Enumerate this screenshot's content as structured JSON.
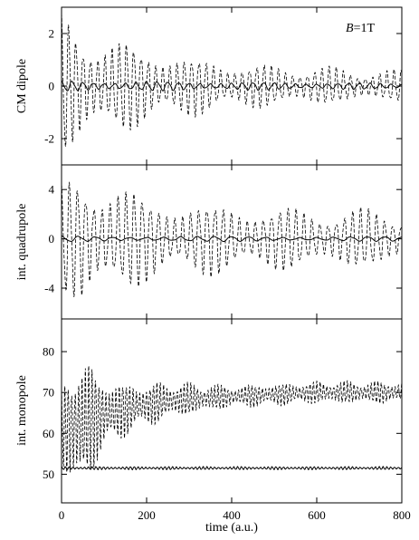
{
  "chart_data": [
    {
      "type": "line",
      "panel": "top",
      "ylabel": "CM dipole",
      "annotation": {
        "italic": "B",
        "rest": "=1T",
        "position": "top-right"
      },
      "xlim": [
        0,
        800
      ],
      "ylim": [
        -3,
        3
      ],
      "yticks": [
        -2,
        0,
        2
      ],
      "ytick_labels": [
        "-2",
        "0",
        "2"
      ],
      "grid": false,
      "series": [
        {
          "style": "dashed",
          "envelope": {
            "t": [
              0,
              50,
              100,
              200,
              300,
              400,
              500,
              600,
              700,
              800
            ],
            "amp": [
              2.9,
              2.3,
              2.0,
              1.6,
              1.2,
              1.0,
              0.85,
              0.8,
              0.7,
              0.65
            ]
          },
          "period": 17,
          "mean": 0
        },
        {
          "style": "solid",
          "envelope": {
            "t": [
              0,
              800
            ],
            "amp": [
              0.22,
              0.12
            ]
          },
          "period": 25,
          "mean": 0
        }
      ]
    },
    {
      "type": "line",
      "panel": "middle",
      "ylabel": "int. quadrupole",
      "xlim": [
        0,
        800
      ],
      "ylim": [
        -6.5,
        6
      ],
      "yticks": [
        -4,
        0,
        4
      ],
      "ytick_labels": [
        "-4",
        "0",
        "4"
      ],
      "grid": false,
      "series": [
        {
          "style": "dashed",
          "envelope": {
            "t": [
              0,
              50,
              100,
              200,
              300,
              400,
              500,
              600,
              700,
              800
            ],
            "amp": [
              4.6,
              6.5,
              5.0,
              3.8,
              3.2,
              3.0,
              2.8,
              2.6,
              2.6,
              2.4
            ]
          },
          "period": 19,
          "mean": 0
        },
        {
          "style": "solid",
          "envelope": {
            "t": [
              0,
              800
            ],
            "amp": [
              0.25,
              0.2
            ]
          },
          "period": 40,
          "mean": 0
        }
      ]
    },
    {
      "type": "line",
      "panel": "bottom",
      "xlabel": "time (a.u.)",
      "ylabel": "int. monopole",
      "xlim": [
        0,
        800
      ],
      "xticks": [
        0,
        200,
        400,
        600,
        800
      ],
      "xtick_labels": [
        "0",
        "200",
        "400",
        "600",
        "800"
      ],
      "ylim": [
        43,
        88
      ],
      "yticks": [
        50,
        60,
        70,
        80
      ],
      "ytick_labels": [
        "50",
        "60",
        "70",
        "80"
      ],
      "grid": false,
      "series": [
        {
          "style": "dashed",
          "mean_curve": {
            "t": [
              0,
              40,
              80,
              150,
              250,
              400,
              600,
              800
            ],
            "value": [
              61,
              62,
              64,
              66,
              68,
              69,
              70,
              70
            ]
          },
          "envelope": {
            "t": [
              0,
              40,
              80,
              150,
              250,
              400,
              600,
              800
            ],
            "amp": [
              10,
              21,
              12,
              7,
              5,
              3,
              3,
              3
            ]
          },
          "period": 8
        },
        {
          "style": "solid",
          "mean_curve": {
            "t": [
              0,
              800
            ],
            "value": [
              51.5,
              51.5
            ]
          },
          "envelope": {
            "t": [
              0,
              800
            ],
            "amp": [
              0.4,
              0.4
            ]
          },
          "period": 9
        }
      ]
    }
  ]
}
